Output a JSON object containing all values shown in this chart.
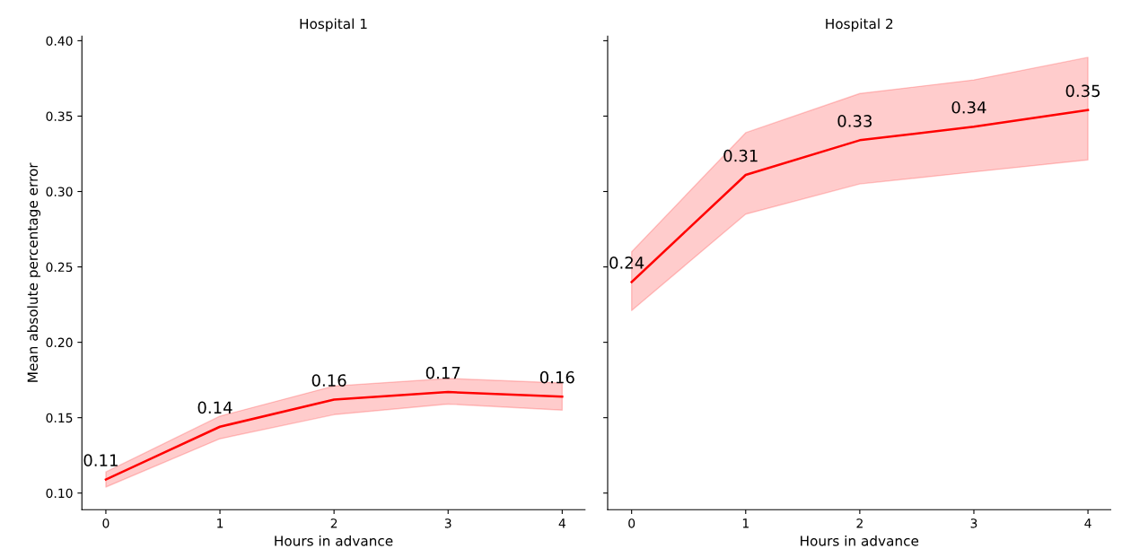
{
  "chart_data": [
    {
      "type": "line",
      "title": "Hospital 1",
      "xlabel": "Hours in advance",
      "ylabel": "Mean absolute percentage error",
      "x": [
        0,
        1,
        2,
        3,
        4
      ],
      "xlim": [
        -0.21,
        4.2
      ],
      "xticks": [
        0,
        1,
        2,
        3,
        4
      ],
      "ylim": [
        0.089,
        0.403
      ],
      "yticks": [
        {
          "value": 0.1,
          "label": "0.10"
        },
        {
          "value": 0.15,
          "label": "0.15"
        },
        {
          "value": 0.2,
          "label": "0.20"
        },
        {
          "value": 0.25,
          "label": "0.25"
        },
        {
          "value": 0.3,
          "label": "0.30"
        },
        {
          "value": 0.35,
          "label": "0.35"
        },
        {
          "value": 0.4,
          "label": "0.40"
        }
      ],
      "grid": false,
      "series": [
        {
          "color": "#ff0000",
          "values": [
            0.109,
            0.144,
            0.162,
            0.167,
            0.164
          ],
          "lower": [
            0.104,
            0.136,
            0.152,
            0.159,
            0.155
          ],
          "upper": [
            0.114,
            0.151,
            0.171,
            0.176,
            0.173
          ],
          "value_labels": [
            "0.11",
            "0.14",
            "0.16",
            "0.17",
            "0.16"
          ]
        }
      ]
    },
    {
      "type": "line",
      "title": "Hospital 2",
      "xlabel": "Hours in advance",
      "x": [
        0,
        1,
        2,
        3,
        4
      ],
      "xlim": [
        -0.21,
        4.2
      ],
      "xticks": [
        0,
        1,
        2,
        3,
        4
      ],
      "ylim": [
        0.089,
        0.403
      ],
      "yticks": [
        {
          "value": 0.1,
          "label": null
        },
        {
          "value": 0.15,
          "label": null
        },
        {
          "value": 0.2,
          "label": null
        },
        {
          "value": 0.25,
          "label": null
        },
        {
          "value": 0.3,
          "label": null
        },
        {
          "value": 0.35,
          "label": null
        },
        {
          "value": 0.4,
          "label": null
        }
      ],
      "tick_labels": "x",
      "grid": false,
      "series": [
        {
          "color": "#ff0000",
          "values": [
            0.24,
            0.311,
            0.334,
            0.343,
            0.354
          ],
          "lower": [
            0.221,
            0.285,
            0.305,
            0.313,
            0.321
          ],
          "upper": [
            0.26,
            0.339,
            0.365,
            0.374,
            0.389
          ],
          "value_labels": [
            "0.24",
            "0.31",
            "0.33",
            "0.34",
            "0.35"
          ]
        }
      ]
    }
  ]
}
